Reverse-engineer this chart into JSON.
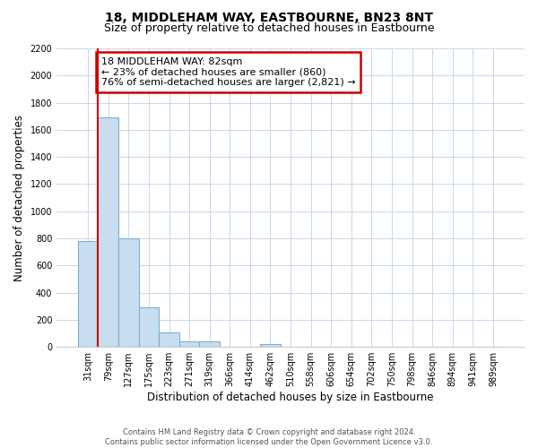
{
  "title": "18, MIDDLEHAM WAY, EASTBOURNE, BN23 8NT",
  "subtitle": "Size of property relative to detached houses in Eastbourne",
  "xlabel": "Distribution of detached houses by size in Eastbourne",
  "ylabel": "Number of detached properties",
  "categories": [
    "31sqm",
    "79sqm",
    "127sqm",
    "175sqm",
    "223sqm",
    "271sqm",
    "319sqm",
    "366sqm",
    "414sqm",
    "462sqm",
    "510sqm",
    "558sqm",
    "606sqm",
    "654sqm",
    "702sqm",
    "750sqm",
    "798sqm",
    "846sqm",
    "894sqm",
    "941sqm",
    "989sqm"
  ],
  "values": [
    780,
    1690,
    800,
    295,
    110,
    38,
    38,
    0,
    0,
    20,
    0,
    0,
    0,
    0,
    0,
    0,
    0,
    0,
    0,
    0,
    0
  ],
  "bar_color": "#c8ddf0",
  "bar_edge_color": "#7bafd4",
  "vline_color": "#cc0000",
  "annotation_title": "18 MIDDLEHAM WAY: 82sqm",
  "annotation_line1": "← 23% of detached houses are smaller (860)",
  "annotation_line2": "76% of semi-detached houses are larger (2,821) →",
  "annotation_box_color": "white",
  "annotation_box_edge": "#cc0000",
  "ylim": [
    0,
    2200
  ],
  "yticks": [
    0,
    200,
    400,
    600,
    800,
    1000,
    1200,
    1400,
    1600,
    1800,
    2000,
    2200
  ],
  "footer_line1": "Contains HM Land Registry data © Crown copyright and database right 2024.",
  "footer_line2": "Contains public sector information licensed under the Open Government Licence v3.0.",
  "bg_color": "#ffffff",
  "grid_color": "#c8d8e8",
  "title_fontsize": 10,
  "subtitle_fontsize": 9,
  "tick_fontsize": 7,
  "ylabel_fontsize": 8.5,
  "xlabel_fontsize": 8.5,
  "annotation_fontsize": 8,
  "footer_fontsize": 6
}
